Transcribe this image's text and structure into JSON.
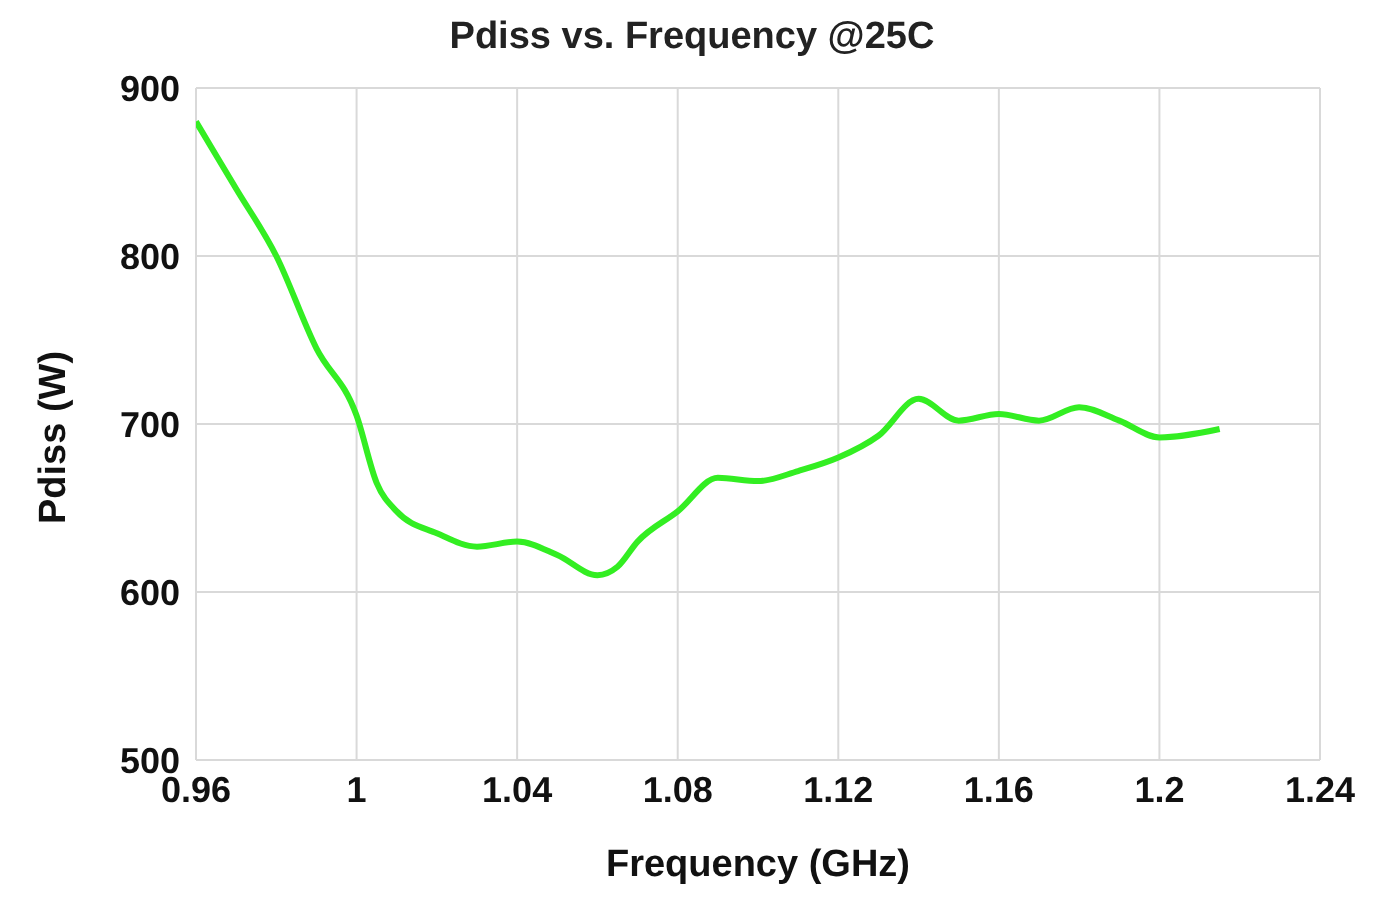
{
  "chart_data": {
    "type": "line",
    "title": "Pdiss vs. Frequency @25C",
    "xlabel": "Frequency (GHz)",
    "ylabel": "Pdiss (W)",
    "x": [
      0.96,
      0.97,
      0.98,
      0.99,
      1.0,
      1.005,
      1.01,
      1.02,
      1.03,
      1.04,
      1.05,
      1.06,
      1.065,
      1.07,
      1.08,
      1.09,
      1.1,
      1.11,
      1.12,
      1.13,
      1.14,
      1.15,
      1.16,
      1.17,
      1.18,
      1.19,
      1.2,
      1.215
    ],
    "series": [
      {
        "color": "#33ee22",
        "values": [
          880,
          840,
          800,
          745,
          705,
          665,
          648,
          635,
          627,
          630,
          622,
          610,
          615,
          630,
          648,
          668,
          666,
          672,
          680,
          693,
          715,
          702,
          706,
          702,
          710,
          702,
          692,
          697
        ]
      }
    ],
    "xlim": [
      0.96,
      1.24
    ],
    "xticks": [
      0.96,
      1,
      1.04,
      1.08,
      1.12,
      1.16,
      1.2,
      1.24
    ],
    "ylim": [
      500,
      900
    ],
    "yticks": [
      500,
      600,
      700,
      800,
      900
    ],
    "grid": true,
    "marker": "none",
    "line_style": "solid",
    "legend": false
  }
}
